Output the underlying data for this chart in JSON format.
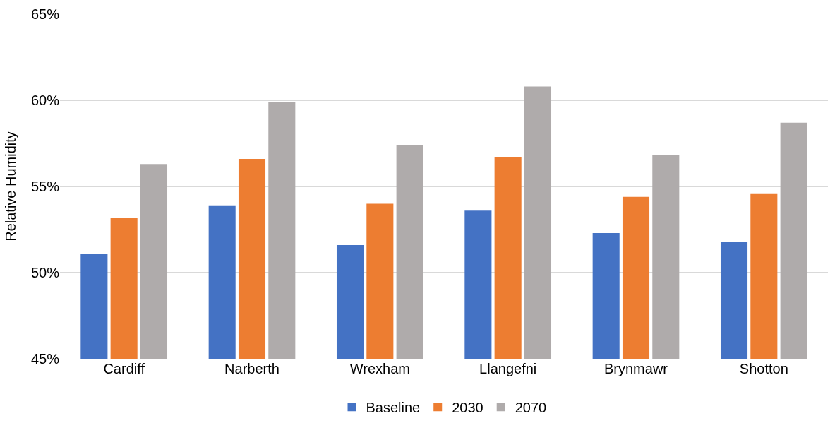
{
  "chart_data": {
    "type": "bar",
    "ylabel": "Relative Humidity",
    "categories": [
      "Cardiff",
      "Narberth",
      "Wrexham",
      "Llangefni",
      "Brynmawr",
      "Shotton"
    ],
    "series": [
      {
        "name": "Baseline",
        "color": "#4472c4",
        "values": [
          51.1,
          53.9,
          51.6,
          53.6,
          52.3,
          51.8
        ]
      },
      {
        "name": "2030",
        "color": "#ed7d31",
        "values": [
          53.2,
          56.6,
          54.0,
          56.7,
          54.4,
          54.6
        ]
      },
      {
        "name": "2070",
        "color": "#afabab",
        "values": [
          56.3,
          59.9,
          57.4,
          60.8,
          56.8,
          58.7
        ]
      }
    ],
    "ylim": [
      45,
      65
    ],
    "yticks": [
      {
        "value": 45,
        "label": "45%"
      },
      {
        "value": 50,
        "label": "50%"
      },
      {
        "value": 55,
        "label": "55%"
      },
      {
        "value": 60,
        "label": "60%"
      },
      {
        "value": 65,
        "label": "65%"
      }
    ],
    "grid": "y",
    "legend": "bottom"
  }
}
